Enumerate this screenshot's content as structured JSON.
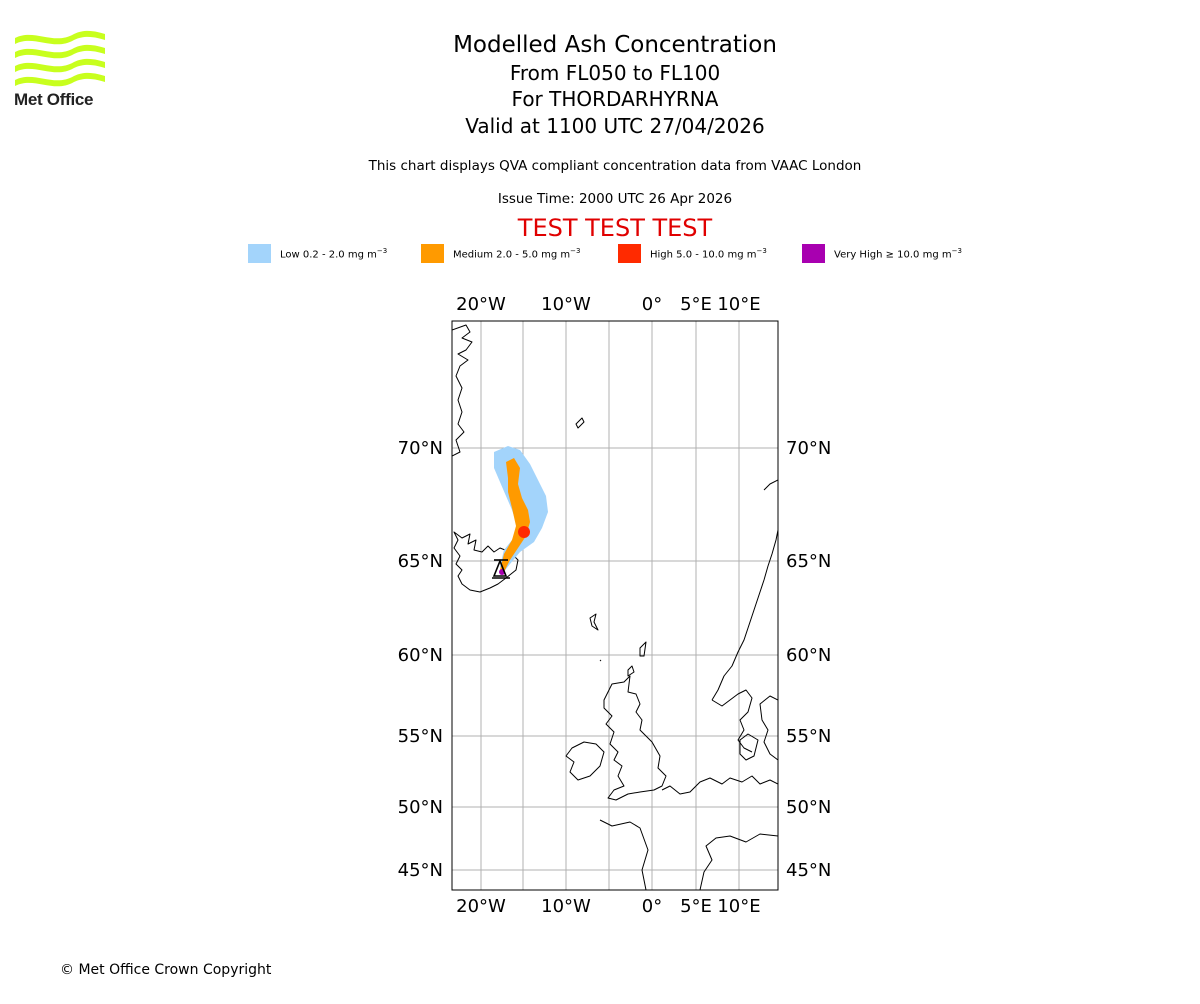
{
  "logo": {
    "name": "Met Office",
    "colors": {
      "wave": "#c8ff1e",
      "text": "#222222"
    }
  },
  "title": {
    "line1": "Modelled Ash Concentration",
    "line2": "From FL050 to FL100",
    "line3": "For THORDARHYRNA",
    "line4": "Valid at 1100 UTC 27/04/2026"
  },
  "compliance_note": "This chart displays QVA compliant concentration data from VAAC London",
  "issue_time": "Issue Time: 2000 UTC 26 Apr 2026",
  "test_banner": "TEST TEST TEST",
  "legend": [
    {
      "label": "Low 0.2 - 2.0 mg m",
      "color": "#a3d4fb"
    },
    {
      "label": "Medium 2.0 - 5.0 mg m",
      "color": "#ff9a00"
    },
    {
      "label": "High 5.0 - 10.0 mg m",
      "color": "#ff2a00"
    },
    {
      "label": "Very High ≥ 10.0 mg m",
      "color": "#a800b0"
    }
  ],
  "legend_unit_exponent": "−3",
  "map": {
    "lon_labels": [
      "20°W",
      "10°W",
      "0°",
      "5°E",
      "10°E"
    ],
    "lat_labels": [
      "70°N",
      "65°N",
      "60°N",
      "55°N",
      "50°N",
      "45°N"
    ],
    "volcano": "THORDARHYRNA",
    "volcano_lat": 64.27,
    "volcano_lon": -17.6
  },
  "copyright": "© Met Office Crown Copyright"
}
